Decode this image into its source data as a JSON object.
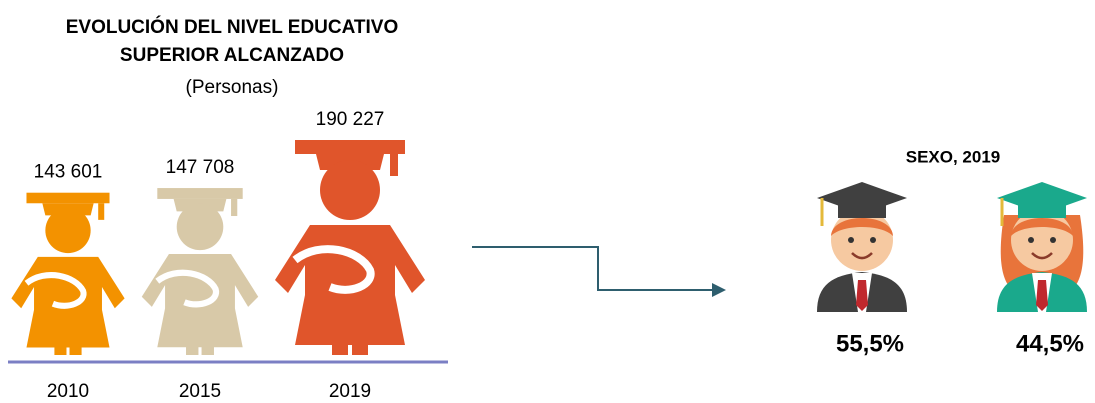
{
  "chart_data": [
    {
      "type": "pictograph",
      "title": "EVOLUCIÓN DEL NIVEL EDUCATIVO SUPERIOR ALCANZADO",
      "subtitle": "(Personas)",
      "categories": [
        "2010",
        "2015",
        "2019"
      ],
      "values": [
        143601,
        147708,
        190227
      ],
      "value_labels": [
        "143 601",
        "147 708",
        "190 227"
      ],
      "colors": [
        "#f39200",
        "#d8c9a8",
        "#e0552b"
      ]
    },
    {
      "type": "pictograph-share",
      "title": "SEXO, 2019",
      "categories": [
        null,
        null
      ],
      "values": [
        55.5,
        44.5
      ],
      "value_labels": [
        "55,5%",
        "44,5%"
      ],
      "colors": [
        "#404040",
        "#1aa98c"
      ]
    }
  ]
}
